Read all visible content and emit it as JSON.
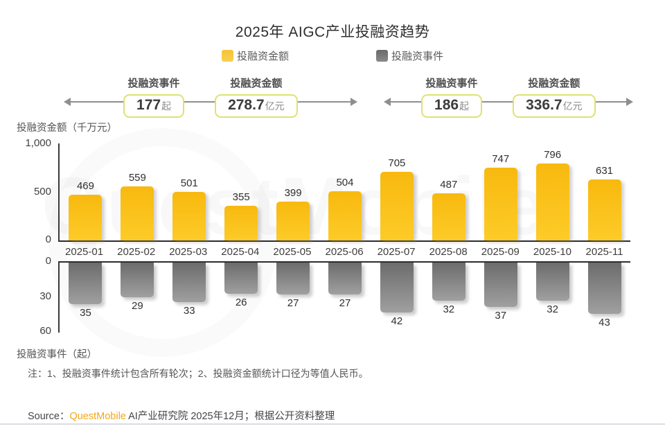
{
  "title": "2025年 AIGC产业投融资趋势",
  "legend": {
    "amount": "投融资金额",
    "events": "投融资事件"
  },
  "summary": {
    "h1": {
      "events_label": "投融资事件",
      "events_value": "177",
      "events_unit": "起",
      "amount_label": "投融资金额",
      "amount_value": "278.7",
      "amount_unit": "亿元"
    },
    "h2": {
      "events_label": "投融资事件",
      "events_value": "186",
      "events_unit": "起",
      "amount_label": "投融资金额",
      "amount_value": "336.7",
      "amount_unit": "亿元"
    }
  },
  "chart_data": {
    "type": "bar",
    "title": "2025年 AIGC产业投融资趋势",
    "categories": [
      "2025-01",
      "2025-02",
      "2025-03",
      "2025-04",
      "2025-05",
      "2025-06",
      "2025-07",
      "2025-08",
      "2025-09",
      "2025-10",
      "2025-11"
    ],
    "series": [
      {
        "name": "投融资金额",
        "unit": "千万元",
        "values": [
          469,
          559,
          501,
          355,
          399,
          504,
          705,
          487,
          747,
          796,
          631
        ],
        "color": "#FBBE16",
        "ylim": [
          0,
          1000
        ],
        "tick_labels": [
          "1,000",
          "500",
          "0"
        ],
        "orientation": "up"
      },
      {
        "name": "投融资事件",
        "unit": "起",
        "values": [
          35,
          29,
          33,
          26,
          27,
          27,
          42,
          32,
          37,
          32,
          43
        ],
        "color": "#7A7A7A",
        "ylim": [
          0,
          60
        ],
        "tick_labels": [
          "0",
          "30",
          "60"
        ],
        "orientation": "down"
      }
    ],
    "upper_axis_label": "投融资金额（千万元）",
    "lower_axis_label": "投融资事件（起）",
    "grid": false,
    "legend_position": "top"
  },
  "note": "注：1、投融资事件统计包含所有轮次；2、投融资金额统计口径为等值人民币。",
  "source": {
    "prefix": "Source：",
    "brand": "QuestMobile",
    "rest": " AI产业研究院 2025年12月；根据公开资料整理"
  },
  "watermark": "QuestMobile",
  "colors": {
    "bar_amount_top": "#F8B90F",
    "bar_amount_bottom": "#FDCB28",
    "bar_events_top": "#6C6C6C",
    "bar_events_bottom": "#A0A0A0",
    "badge_border": "#DEE26F",
    "arrow_line": "#8F8F8F",
    "brand_text": "#F2A71E",
    "axis_line": "#2C2C2C"
  }
}
